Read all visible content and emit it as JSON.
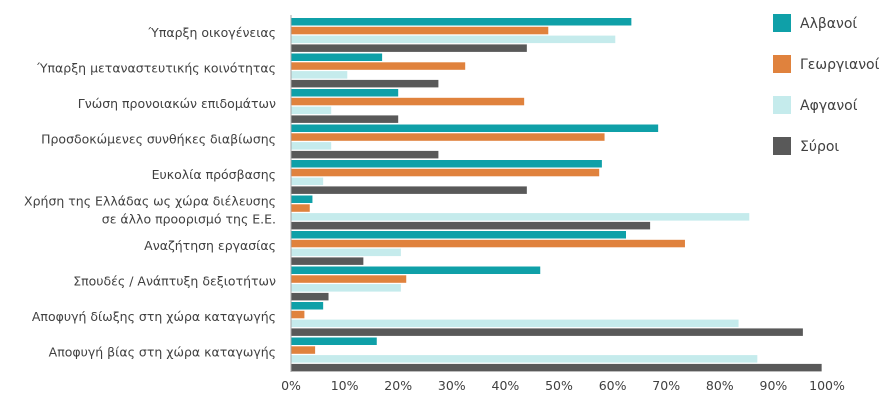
{
  "chart_data": {
    "type": "bar",
    "orientation": "horizontal",
    "title": "",
    "xlabel": "",
    "ylabel": "",
    "xlim": [
      0,
      100
    ],
    "x_ticks": [
      "0%",
      "10%",
      "20%",
      "30%",
      "40%",
      "50%",
      "60%",
      "70%",
      "80%",
      "90%",
      "100%"
    ],
    "grid": false,
    "legend_position": "right",
    "categories": [
      [
        "Ύπαρξη οικογένειας"
      ],
      [
        "Ύπαρξη μεταναστευτικής κοινότητας"
      ],
      [
        "Γνώση προνοιακών επιδομάτων"
      ],
      [
        "Προσδοκώμενες συνθήκες διαβίωσης"
      ],
      [
        "Ευκολία πρόσβασης"
      ],
      [
        "Χρήση της Ελλάδας ως χώρα διέλευσης",
        "σε άλλο προορισμό της Ε.Ε."
      ],
      [
        "Αναζήτηση εργασίας"
      ],
      [
        "Σπουδές / Ανάπτυξη δεξιοτήτων"
      ],
      [
        "Αποφυγή δίωξης στη χώρα καταγωγής"
      ],
      [
        "Αποφυγή βίας στη χώρα καταγωγής"
      ]
    ],
    "series": [
      {
        "name": "Αλβανοί",
        "color": "#0fa0a8",
        "values": [
          63.5,
          17,
          20,
          68.5,
          58,
          4,
          62.5,
          46.5,
          6,
          16
        ]
      },
      {
        "name": "Γεωργιανοί",
        "color": "#e0823d",
        "values": [
          48,
          32.5,
          43.5,
          58.5,
          57.5,
          3.5,
          73.5,
          21.5,
          2.5,
          4.5
        ]
      },
      {
        "name": "Αφγανοί",
        "color": "#c5ebec",
        "values": [
          60.5,
          10.5,
          7.5,
          7.5,
          6,
          85.5,
          20.5,
          20.5,
          83.5,
          87
        ]
      },
      {
        "name": "Σύροι",
        "color": "#595959",
        "values": [
          44,
          27.5,
          20,
          27.5,
          44,
          67,
          13.5,
          7,
          95.5,
          99
        ]
      }
    ]
  }
}
